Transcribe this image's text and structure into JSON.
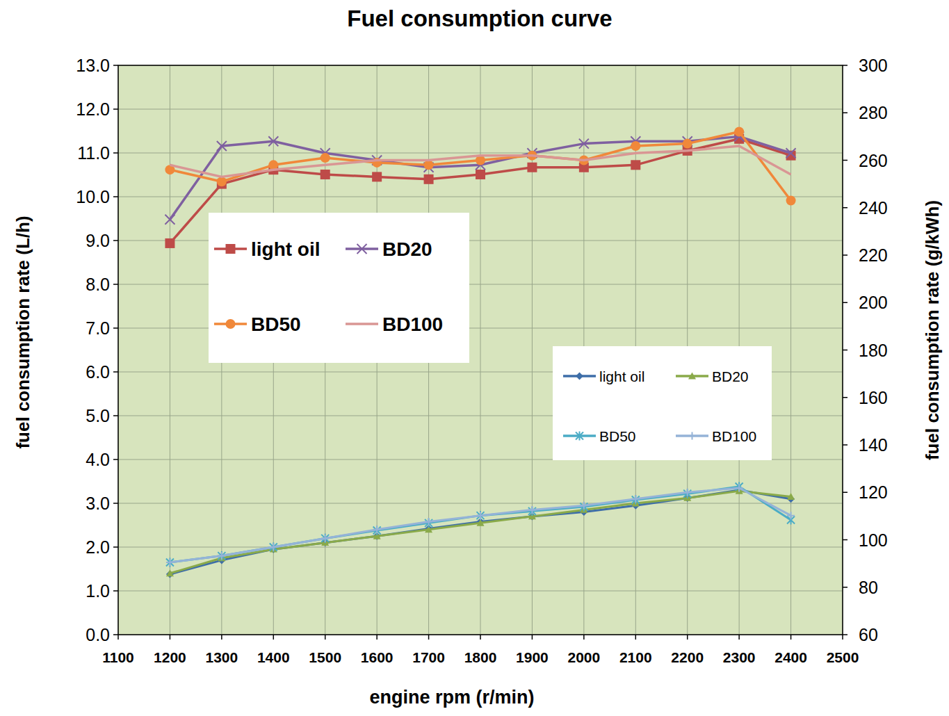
{
  "chart_data": {
    "type": "line",
    "title": "Fuel consumption curve",
    "x_label": "engine rpm (r/min)",
    "y_label": "fuel consumption rate (L/h)",
    "y2_label": "fuel consumption rate (g/kWh)",
    "x": [
      1200,
      1300,
      1400,
      1500,
      1600,
      1700,
      1800,
      1900,
      2000,
      2100,
      2200,
      2300,
      2400
    ],
    "xlim": [
      1100,
      2500
    ],
    "xticks": [
      1100,
      1200,
      1300,
      1400,
      1500,
      1600,
      1700,
      1800,
      1900,
      2000,
      2100,
      2200,
      2300,
      2400,
      2500
    ],
    "ylim": [
      0,
      13
    ],
    "yticks": [
      {
        "value": 0,
        "label": "0.0"
      },
      {
        "value": 1,
        "label": "1.0"
      },
      {
        "value": 2,
        "label": "2.0"
      },
      {
        "value": 3,
        "label": "3.0"
      },
      {
        "value": 4,
        "label": "4.0"
      },
      {
        "value": 5,
        "label": "5.0"
      },
      {
        "value": 6,
        "label": "6.0"
      },
      {
        "value": 7,
        "label": "7.0"
      },
      {
        "value": 8,
        "label": "8.0"
      },
      {
        "value": 9,
        "label": "9.0"
      },
      {
        "value": 10,
        "label": "10.0"
      },
      {
        "value": 11,
        "label": "11.0"
      },
      {
        "value": 12,
        "label": "12.0"
      },
      {
        "value": 13,
        "label": "13.0"
      }
    ],
    "y2lim": [
      60,
      300
    ],
    "y2ticks": [
      60,
      80,
      100,
      120,
      140,
      160,
      180,
      200,
      220,
      240,
      260,
      280,
      300
    ],
    "grid": true,
    "series": [
      {
        "name": "light oil",
        "color": "#be4b48",
        "marker": "square",
        "axis": "y2",
        "values": [
          225,
          250,
          256,
          254,
          253,
          252,
          254,
          257,
          257,
          258,
          264,
          269,
          262
        ]
      },
      {
        "name": "BD20",
        "color": "#7f60a0",
        "marker": "x",
        "axis": "y2",
        "values": [
          235,
          266,
          268,
          263,
          260,
          257,
          258,
          263,
          267,
          268,
          268,
          270,
          263
        ]
      },
      {
        "name": "BD50",
        "color": "#f0883a",
        "marker": "circle",
        "axis": "y2",
        "values": [
          256,
          251,
          258,
          261,
          259,
          258,
          260,
          262,
          260,
          266,
          267,
          272,
          243
        ]
      },
      {
        "name": "BD100",
        "color": "#d99694",
        "marker": "none",
        "axis": "y2",
        "values": [
          258,
          253,
          256,
          258,
          260,
          260,
          262,
          262,
          260,
          263,
          264,
          266,
          254
        ]
      },
      {
        "name": "light oil",
        "color": "#3e6ea8",
        "marker": "diamond",
        "axis": "y",
        "values": [
          1.38,
          1.7,
          1.95,
          2.1,
          2.25,
          2.42,
          2.58,
          2.7,
          2.8,
          2.95,
          3.12,
          3.3,
          3.1
        ]
      },
      {
        "name": "BD20",
        "color": "#8aaa4a",
        "marker": "triangle",
        "axis": "y",
        "values": [
          1.4,
          1.75,
          1.95,
          2.1,
          2.25,
          2.4,
          2.55,
          2.7,
          2.85,
          3.0,
          3.12,
          3.28,
          3.15
        ]
      },
      {
        "name": "BD50",
        "color": "#4bacc6",
        "marker": "star",
        "axis": "y",
        "values": [
          1.65,
          1.8,
          2.0,
          2.2,
          2.38,
          2.55,
          2.72,
          2.82,
          2.92,
          3.08,
          3.22,
          3.38,
          2.62
        ]
      },
      {
        "name": "BD100",
        "color": "#95b3d7",
        "marker": "plus",
        "axis": "y",
        "values": [
          1.65,
          1.8,
          2.0,
          2.2,
          2.4,
          2.58,
          2.72,
          2.85,
          2.95,
          3.1,
          3.25,
          3.35,
          2.72
        ]
      }
    ]
  }
}
